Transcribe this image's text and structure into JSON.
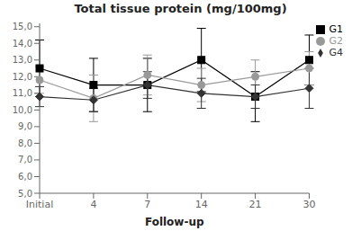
{
  "chart_data": {
    "type": "line",
    "title": "Total tissue protein (mg/100mg)",
    "xlabel": "Follow-up",
    "categories": [
      "Initial",
      "4",
      "7",
      "14",
      "21",
      "30"
    ],
    "series": [
      {
        "name": "G1",
        "color": "#000000",
        "marker": "square",
        "values": [
          12.5,
          11.5,
          11.5,
          13.0,
          10.8,
          13.0
        ],
        "errors": [
          1.7,
          1.6,
          1.6,
          1.9,
          1.5,
          1.5
        ]
      },
      {
        "name": "G2",
        "color": "#999999",
        "marker": "circle",
        "values": [
          11.8,
          10.7,
          12.1,
          11.5,
          12.0,
          12.5
        ],
        "errors": [
          0.8,
          1.4,
          1.2,
          1.0,
          1.0,
          1.0
        ]
      },
      {
        "name": "G4",
        "color": "#333333",
        "marker": "diamond",
        "values": [
          10.8,
          10.6,
          11.5,
          11.0,
          10.8,
          11.3
        ],
        "errors": [
          0.6,
          0.7,
          0.8,
          0.9,
          0.7,
          1.2
        ]
      }
    ],
    "ylim": [
      5.0,
      15.2
    ],
    "yticks": [
      {
        "value": 5.0,
        "label": "5,0"
      },
      {
        "value": 6.0,
        "label": "6,0"
      },
      {
        "value": 7.0,
        "label": "7,0"
      },
      {
        "value": 8.0,
        "label": "8,0"
      },
      {
        "value": 9.0,
        "label": "9,0"
      },
      {
        "value": 10.0,
        "label": "10,0"
      },
      {
        "value": 11.0,
        "label": "11,0"
      },
      {
        "value": 12.0,
        "label": "12,0"
      },
      {
        "value": 13.0,
        "label": "13,0"
      },
      {
        "value": 14.0,
        "label": "14,0"
      },
      {
        "value": 15.0,
        "label": "15,0"
      }
    ],
    "legend": "upper right",
    "grid": false
  }
}
